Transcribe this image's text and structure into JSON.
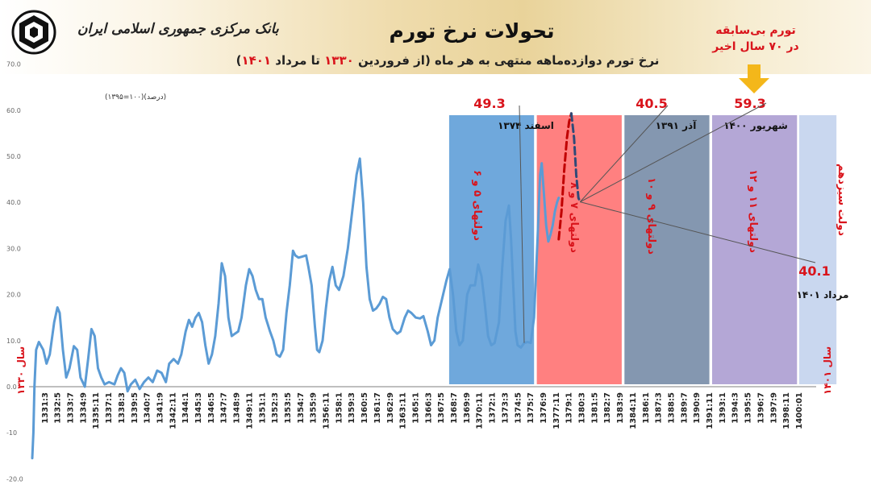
{
  "header": {
    "bank_name": "بانک مرکزی جمهوری اسلامی ایران",
    "title": "تحولات نرخ تورم",
    "subtitle_pre": "نرخ تورم دوازده‌ماهه منتهی به هر ماه (از فروردین ",
    "subtitle_y1": "۱۳۳۰",
    "subtitle_mid": " تا مرداد ",
    "subtitle_y2": "۱۴۰۱",
    "subtitle_post": ")",
    "logo_icon": "central-bank-logo-icon"
  },
  "colors": {
    "line": "#5b9bd5",
    "forecast": "#c00000",
    "red_text": "#d9141c",
    "band_blue": "#6fa8dc",
    "band_red": "#ff8080",
    "band_slate": "#8497b0",
    "band_purple": "#b4a7d6",
    "band_lightblue": "#c9d7ef",
    "arrow": "#f4b71a"
  },
  "chart_data": {
    "type": "line",
    "ylabel": "(درصد)(۱۰۰=۱۳۹۵)",
    "ylim": [
      -20,
      70
    ],
    "yticks": [
      "70.0",
      "60.0",
      "50.0",
      "40.0",
      "30.0",
      "20.0",
      "10.0",
      "0.0",
      "-10",
      "-20.0"
    ],
    "xlim": [
      1330.0,
      1401.4
    ],
    "xticks": [
      "1331:3",
      "1332:5",
      "1333:7",
      "1334:9",
      "1335:11",
      "1337:1",
      "1338:3",
      "1339:5",
      "1340:7",
      "1341:9",
      "1342:11",
      "1344:1",
      "1345:3",
      "1346:5",
      "1347:7",
      "1348:9",
      "1349:11",
      "1351:1",
      "1352:3",
      "1353:5",
      "1354:7",
      "1355:9",
      "1356:11",
      "1358:1",
      "1359:3",
      "1360:5",
      "1361:7",
      "1362:9",
      "1363:11",
      "1365:1",
      "1366:3",
      "1367:5",
      "1368:7",
      "1369:9",
      "1370:11",
      "1372:1",
      "1373:3",
      "1374:5",
      "1375:7",
      "1376:9",
      "1377:11",
      "1379:1",
      "1380:3",
      "1381:5",
      "1382:7",
      "1383:9",
      "1384:11",
      "1386:1",
      "1387:3",
      "1388:5",
      "1389:7",
      "1390:9",
      "1391:11",
      "1393:1",
      "1394:3",
      "1395:5",
      "1396:7",
      "1397:9",
      "1398:11",
      "1400:01"
    ],
    "series": [
      {
        "style": "solid",
        "points": [
          [
            1330.0,
            -15.5
          ],
          [
            1330.1,
            -10
          ],
          [
            1330.2,
            0
          ],
          [
            1330.35,
            8
          ],
          [
            1330.6,
            9.7
          ],
          [
            1331.0,
            8
          ],
          [
            1331.3,
            5
          ],
          [
            1331.6,
            7
          ],
          [
            1332.0,
            14
          ],
          [
            1332.3,
            17.2
          ],
          [
            1332.5,
            16
          ],
          [
            1332.8,
            8
          ],
          [
            1333.1,
            2
          ],
          [
            1333.4,
            4
          ],
          [
            1333.8,
            8.8
          ],
          [
            1334.1,
            8
          ],
          [
            1334.4,
            2
          ],
          [
            1334.8,
            0
          ],
          [
            1335.1,
            6
          ],
          [
            1335.4,
            12.5
          ],
          [
            1335.7,
            11
          ],
          [
            1336.0,
            4
          ],
          [
            1336.3,
            2
          ],
          [
            1336.6,
            0.5
          ],
          [
            1337.0,
            1
          ],
          [
            1337.5,
            0.5
          ],
          [
            1337.8,
            2.5
          ],
          [
            1338.1,
            4
          ],
          [
            1338.4,
            3
          ],
          [
            1338.7,
            -1
          ],
          [
            1339.0,
            0.5
          ],
          [
            1339.4,
            1.5
          ],
          [
            1339.8,
            -0.5
          ],
          [
            1340.2,
            1
          ],
          [
            1340.6,
            2
          ],
          [
            1341.0,
            1
          ],
          [
            1341.4,
            3.5
          ],
          [
            1341.8,
            3
          ],
          [
            1342.2,
            1
          ],
          [
            1342.5,
            5
          ],
          [
            1342.9,
            6
          ],
          [
            1343.3,
            5
          ],
          [
            1343.6,
            7
          ],
          [
            1344.0,
            12
          ],
          [
            1344.3,
            14.5
          ],
          [
            1344.6,
            13
          ],
          [
            1344.9,
            15
          ],
          [
            1345.2,
            16
          ],
          [
            1345.5,
            14
          ],
          [
            1345.8,
            9
          ],
          [
            1346.1,
            5
          ],
          [
            1346.4,
            7
          ],
          [
            1346.7,
            11
          ],
          [
            1347.0,
            18
          ],
          [
            1347.3,
            26.8
          ],
          [
            1347.6,
            24
          ],
          [
            1347.9,
            15
          ],
          [
            1348.2,
            11
          ],
          [
            1348.5,
            11.5
          ],
          [
            1348.8,
            12
          ],
          [
            1349.1,
            15
          ],
          [
            1349.5,
            22
          ],
          [
            1349.8,
            25.5
          ],
          [
            1350.1,
            24
          ],
          [
            1350.4,
            21
          ],
          [
            1350.7,
            19
          ],
          [
            1351.0,
            19
          ],
          [
            1351.3,
            15
          ],
          [
            1351.7,
            12
          ],
          [
            1352.0,
            10
          ],
          [
            1352.3,
            7
          ],
          [
            1352.6,
            6.5
          ],
          [
            1352.9,
            8
          ],
          [
            1353.2,
            16
          ],
          [
            1353.5,
            22
          ],
          [
            1353.8,
            29.5
          ],
          [
            1354.0,
            28.5
          ],
          [
            1354.3,
            28
          ],
          [
            1354.6,
            28.2
          ],
          [
            1355.0,
            28.5
          ],
          [
            1355.2,
            26
          ],
          [
            1355.5,
            22
          ],
          [
            1355.8,
            13
          ],
          [
            1356.0,
            8
          ],
          [
            1356.2,
            7.5
          ],
          [
            1356.5,
            10
          ],
          [
            1356.8,
            17
          ],
          [
            1357.1,
            23
          ],
          [
            1357.4,
            26
          ],
          [
            1357.7,
            22
          ],
          [
            1358.0,
            21
          ],
          [
            1358.4,
            24
          ],
          [
            1358.8,
            30
          ],
          [
            1359.2,
            38
          ],
          [
            1359.6,
            46
          ],
          [
            1359.9,
            49.5
          ],
          [
            1360.2,
            40
          ],
          [
            1360.5,
            26
          ],
          [
            1360.8,
            19
          ],
          [
            1361.1,
            16.5
          ],
          [
            1361.4,
            17
          ],
          [
            1361.7,
            18
          ],
          [
            1362.0,
            19.5
          ],
          [
            1362.3,
            19
          ],
          [
            1362.6,
            15
          ],
          [
            1362.9,
            12.5
          ],
          [
            1363.3,
            11.5
          ],
          [
            1363.6,
            12
          ],
          [
            1364.0,
            15
          ],
          [
            1364.3,
            16.5
          ],
          [
            1364.6,
            16
          ],
          [
            1365.0,
            15
          ],
          [
            1365.4,
            14.8
          ],
          [
            1365.7,
            15.3
          ],
          [
            1366.1,
            12
          ],
          [
            1366.4,
            9
          ],
          [
            1366.7,
            10
          ],
          [
            1367.0,
            15
          ],
          [
            1367.4,
            19
          ],
          [
            1367.8,
            23
          ],
          [
            1368.1,
            25.5
          ],
          [
            1368.4,
            20
          ],
          [
            1368.7,
            12
          ],
          [
            1369.0,
            9
          ],
          [
            1369.3,
            10
          ],
          [
            1369.7,
            20
          ],
          [
            1370.0,
            22
          ],
          [
            1370.4,
            22
          ],
          [
            1370.7,
            26.5
          ],
          [
            1371.0,
            24
          ],
          [
            1371.3,
            18
          ],
          [
            1371.6,
            11
          ],
          [
            1371.9,
            9
          ],
          [
            1372.2,
            9.5
          ],
          [
            1372.6,
            14
          ],
          [
            1372.9,
            26
          ],
          [
            1373.2,
            36
          ],
          [
            1373.5,
            39.3
          ],
          [
            1373.7,
            32
          ],
          [
            1373.9,
            22
          ],
          [
            1374.1,
            12
          ],
          [
            1374.3,
            9
          ],
          [
            1374.6,
            8.5
          ],
          [
            1374.9,
            9.5
          ],
          [
            1375.2,
            9.7
          ],
          [
            1375.5,
            9.5
          ],
          [
            1375.8,
            15
          ],
          [
            1376.1,
            31
          ],
          [
            1376.35,
            46
          ],
          [
            1376.5,
            48.5
          ],
          [
            1376.7,
            42
          ],
          [
            1376.9,
            35
          ],
          [
            1377.1,
            31.5
          ],
          [
            1377.3,
            33
          ],
          [
            1377.5,
            35
          ],
          [
            1377.7,
            38
          ],
          [
            1377.9,
            40
          ],
          [
            1378.05,
            41
          ]
        ]
      },
      {
        "style": "forecast",
        "points": [
          [
            1378.05,
            32
          ],
          [
            1378.3,
            38
          ],
          [
            1378.55,
            47
          ],
          [
            1378.8,
            54
          ],
          [
            1379.0,
            57.5
          ],
          [
            1379.2,
            59.3
          ]
        ]
      },
      {
        "style": "projection",
        "points": [
          [
            1379.2,
            59.3
          ],
          [
            1379.45,
            54
          ],
          [
            1379.65,
            46
          ],
          [
            1379.85,
            41
          ],
          [
            1380.0,
            40.1
          ]
        ]
      }
    ],
    "bands": [
      {
        "label": "دولتهای ۵ و ۶",
        "x0": 1368.05,
        "x1": 1375.8,
        "color": "#6fa8dc"
      },
      {
        "label": "دولتهای ۷ و ۸",
        "x0": 1376.05,
        "x1": 1383.8,
        "color": "#ff8080"
      },
      {
        "label": "دولتهای ۹ و ۱۰",
        "x0": 1384.05,
        "x1": 1391.8,
        "color": "#8497b0"
      },
      {
        "label": "دولتهای ۱۱ و ۱۲",
        "x0": 1392.05,
        "x1": 1399.8,
        "color": "#b4a7d6"
      },
      {
        "label": "دولت سیزدهم",
        "x0": 1400.0,
        "x1": 1403.4,
        "color": "#c9d7ef"
      }
    ],
    "annotations": [
      {
        "value": "49.3",
        "period": "اسفند ۱۳۷۴"
      },
      {
        "value": "40.5",
        "period": "آذر ۱۳۹۱"
      },
      {
        "value": "59.3",
        "period": "شهریور ۱۴۰۰"
      },
      {
        "value": "40.1",
        "period": "مرداد ۱۴۰۱"
      }
    ],
    "callout": "تورم بی‌سابقه در ۷۰ سال اخیر",
    "start_label": "سال ۱۳۳۰",
    "end_label": "سال ۱۴۰۱",
    "grid": false,
    "legend": "none"
  }
}
